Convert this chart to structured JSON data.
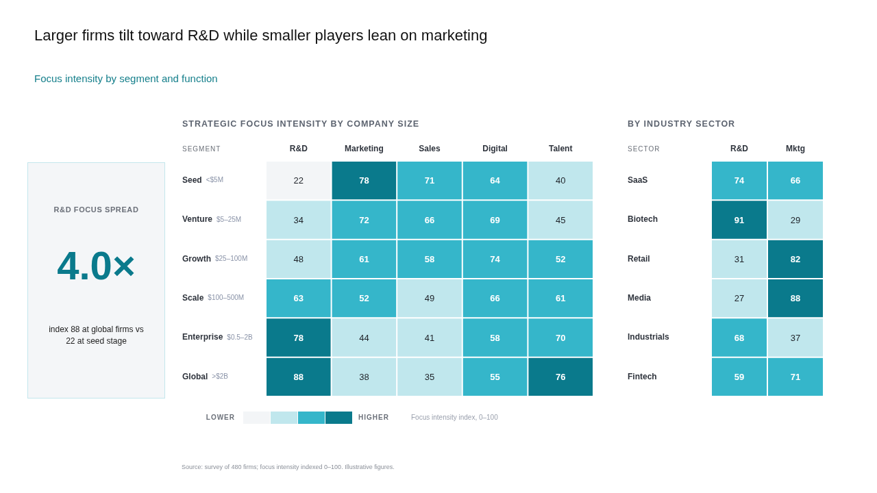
{
  "chart_data": [
    {
      "type": "other",
      "title": "Larger firms tilt toward R&D while smaller players lean on marketing",
      "subtitle": "Focus intensity by segment and function"
    },
    {
      "type": "other",
      "title": "R&D FOCUS SPREAD",
      "annotations": [
        "4.0×",
        "index 88 at global firms vs 22 at seed stage"
      ]
    },
    {
      "type": "heatmap",
      "title": "STRATEGIC FOCUS INTENSITY BY COMPANY SIZE",
      "ylabel": "SEGMENT",
      "categories": [
        "R&D",
        "Marketing",
        "Sales",
        "Digital",
        "Talent"
      ],
      "y_categories": [
        "Seed",
        "Venture",
        "Growth",
        "Scale",
        "Enterprise",
        "Global"
      ],
      "y2_categories": [
        "<$5M",
        "$5–25M",
        "$25–100M",
        "$100–500M",
        "$0.5–2B",
        ">$2B"
      ],
      "cells": [
        [
          22,
          78,
          71,
          64,
          40
        ],
        [
          34,
          72,
          66,
          69,
          45
        ],
        [
          48,
          61,
          58,
          74,
          52
        ],
        [
          63,
          52,
          49,
          66,
          61
        ],
        [
          78,
          44,
          41,
          58,
          70
        ],
        [
          88,
          38,
          35,
          55,
          76
        ]
      ],
      "data_labels": true,
      "colors": [
        "#f3f5f7",
        "#0a7a8c",
        "#35b6ca",
        "#35b6ca",
        "#c0e7ed",
        "#c0e7ed",
        "#35b6ca",
        "#35b6ca",
        "#35b6ca",
        "#c0e7ed",
        "#c0e7ed",
        "#35b6ca",
        "#35b6ca",
        "#35b6ca",
        "#35b6ca",
        "#35b6ca",
        "#35b6ca",
        "#c0e7ed",
        "#35b6ca",
        "#35b6ca",
        "#0a7a8c",
        "#c0e7ed",
        "#c0e7ed",
        "#35b6ca",
        "#35b6ca",
        "#0a7a8c",
        "#c0e7ed",
        "#c0e7ed",
        "#35b6ca",
        "#0a7a8c"
      ],
      "clabel": "Focus intensity index, 0–100",
      "annotations": [
        "LOWER",
        "HIGHER",
        "Source: survey of 480 firms; focus intensity indexed 0–100. Illustrative figures."
      ]
    },
    {
      "type": "heatmap",
      "title": "BY INDUSTRY SECTOR",
      "ylabel": "SECTOR",
      "categories": [
        "R&D",
        "Mktg"
      ],
      "y_categories": [
        "SaaS",
        "Biotech",
        "Retail",
        "Media",
        "Industrials",
        "Fintech"
      ],
      "cells": [
        [
          74,
          66
        ],
        [
          91,
          29
        ],
        [
          31,
          82
        ],
        [
          27,
          88
        ],
        [
          68,
          37
        ],
        [
          59,
          71
        ]
      ],
      "data_labels": true,
      "colors": [
        "#35b6ca",
        "#35b6ca",
        "#0a7a8c",
        "#c0e7ed",
        "#c0e7ed",
        "#0a7a8c",
        "#c0e7ed",
        "#0a7a8c",
        "#35b6ca",
        "#c0e7ed",
        "#35b6ca",
        "#35b6ca"
      ]
    }
  ]
}
